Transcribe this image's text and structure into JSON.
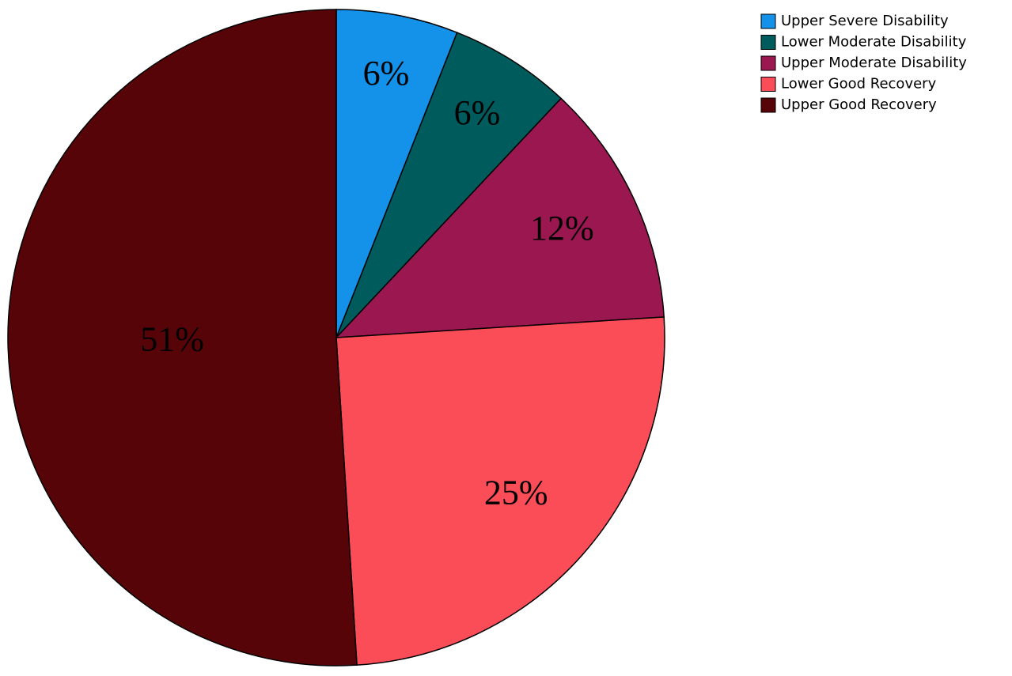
{
  "chart_data": {
    "type": "pie",
    "categories": [
      "Upper Severe Disability",
      "Lower Moderate Disability",
      "Upper Moderate Disability",
      "Lower Good Recovery",
      "Upper Good Recovery"
    ],
    "values": [
      6,
      6,
      12,
      25,
      51
    ],
    "value_labels": [
      "6%",
      "6%",
      "12%",
      "25%",
      "51%"
    ],
    "colors": [
      "#1491e8",
      "#005c5c",
      "#9b1750",
      "#fa4d57",
      "#570408"
    ],
    "legend": "upper right"
  }
}
